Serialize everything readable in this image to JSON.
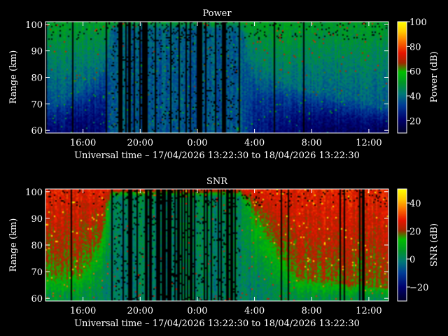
{
  "chart_data": [
    {
      "type": "heatmap",
      "title": "Power",
      "xlabel": "Universal time – 17/04/2026 13:22:30 to 18/04/2026 13:22:30",
      "ylabel": "Range (km)",
      "xticks": [
        "16:00",
        "20:00",
        "0:00",
        "4:00",
        "8:00",
        "12:00"
      ],
      "xtick_hours": [
        16,
        20,
        24,
        28,
        32,
        36
      ],
      "xlim_hours": [
        13.375,
        37.375
      ],
      "yticks": [
        "60",
        "70",
        "80",
        "90",
        "100"
      ],
      "ytick_values": [
        60,
        70,
        80,
        90,
        100
      ],
      "ylim": [
        59,
        101
      ],
      "colorbar": {
        "label": "Power (dB)",
        "ticks": [
          "20",
          "40",
          "60",
          "80",
          "100"
        ],
        "tick_values": [
          20,
          40,
          60,
          80,
          100
        ],
        "range": [
          10,
          100
        ]
      },
      "grid": false,
      "profile": [
        {
          "hour": 13.4,
          "range_edge_km": 68,
          "edge_value": 34,
          "base_value": 22
        },
        {
          "hour": 16.0,
          "range_edge_km": 76,
          "edge_value": 38,
          "base_value": 20
        },
        {
          "hour": 17.5,
          "range_edge_km": 84,
          "edge_value": 40,
          "base_value": 22
        },
        {
          "hour": 18.0,
          "range_edge_km": 98,
          "edge_value": 38,
          "base_value": 36
        },
        {
          "hour": 27.0,
          "range_edge_km": 98,
          "edge_value": 38,
          "base_value": 36
        },
        {
          "hour": 28.0,
          "range_edge_km": 84,
          "edge_value": 42,
          "base_value": 26
        },
        {
          "hour": 31.0,
          "range_edge_km": 76,
          "edge_value": 40,
          "base_value": 20
        },
        {
          "hour": 37.4,
          "range_edge_km": 68,
          "edge_value": 36,
          "base_value": 18
        }
      ],
      "top_value": 52
    },
    {
      "type": "heatmap",
      "title": "SNR",
      "xlabel": "Universal time – 17/04/2026 13:22:30 to 18/04/2026 13:22:30",
      "ylabel": "Range (km)",
      "xticks": [
        "16:00",
        "20:00",
        "0:00",
        "4:00",
        "8:00",
        "12:00"
      ],
      "xtick_hours": [
        16,
        20,
        24,
        28,
        32,
        36
      ],
      "xlim_hours": [
        13.375,
        37.375
      ],
      "yticks": [
        "60",
        "70",
        "80",
        "90",
        "100"
      ],
      "ytick_values": [
        60,
        70,
        80,
        90,
        100
      ],
      "ylim": [
        59,
        101
      ],
      "colorbar": {
        "label": "SNR (dB)",
        "ticks": [
          "−20",
          "0",
          "20",
          "40"
        ],
        "tick_values": [
          -20,
          0,
          20,
          40
        ],
        "range": [
          -30,
          50
        ]
      },
      "grid": false,
      "profile": [
        {
          "hour": 13.4,
          "range_edge_km": 68,
          "edge_value": 16,
          "base_value": 4
        },
        {
          "hour": 16.0,
          "range_edge_km": 70,
          "edge_value": 18,
          "base_value": 6
        },
        {
          "hour": 17.5,
          "range_edge_km": 86,
          "edge_value": 16,
          "base_value": 0
        },
        {
          "hour": 18.0,
          "range_edge_km": 98,
          "edge_value": 2,
          "base_value": 0
        },
        {
          "hour": 27.0,
          "range_edge_km": 98,
          "edge_value": 2,
          "base_value": 0
        },
        {
          "hour": 28.0,
          "range_edge_km": 90,
          "edge_value": 14,
          "base_value": 0
        },
        {
          "hour": 31.0,
          "range_edge_km": 68,
          "edge_value": 18,
          "base_value": 4
        },
        {
          "hour": 37.4,
          "range_edge_km": 64,
          "edge_value": 18,
          "base_value": 2
        }
      ],
      "top_value": 28
    }
  ]
}
